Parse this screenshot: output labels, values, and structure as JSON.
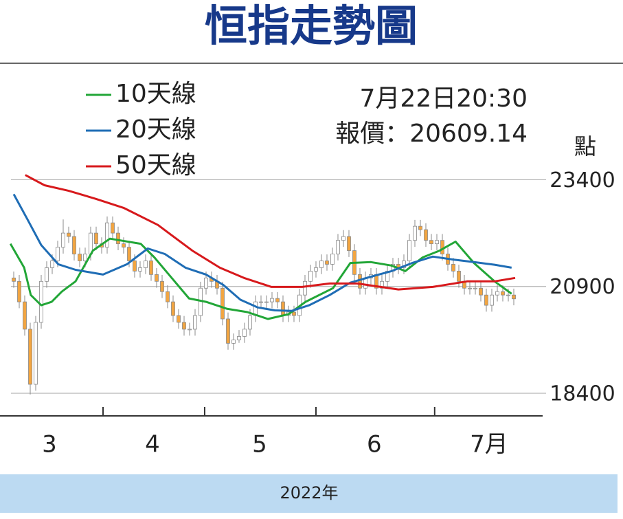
{
  "chart_data": {
    "type": "candlestick",
    "title": "恒指走勢圖",
    "annotations": [
      "7月22日20:30",
      "報價：20609.14"
    ],
    "y_label": "點",
    "x_label": "2022年",
    "ylim": [
      17870,
      23600
    ],
    "yticks": [
      18400,
      20900,
      23400
    ],
    "grid": true,
    "xlim": [
      -1,
      92
    ],
    "xticks": [
      {
        "value": 6.5,
        "label": "3"
      },
      {
        "value": 25.25,
        "label": "4"
      },
      {
        "value": 44.75,
        "label": "5"
      },
      {
        "value": 65.6,
        "label": "6"
      },
      {
        "value": 86.5,
        "label": "7月"
      }
    ],
    "month_boundaries": [
      16.25,
      34.75,
      55,
      76.6
    ],
    "up_color": "#ffffff",
    "down_color": "#f2a541",
    "candle_edge_color": "#888888",
    "candles": [
      [
        21100,
        21250,
        20870,
        21020
      ],
      [
        21020,
        21170,
        20390,
        20540
      ],
      [
        20540,
        20690,
        19750,
        19900
      ],
      [
        19900,
        20050,
        18370,
        18610
      ],
      [
        18610,
        20210,
        18460,
        20060
      ],
      [
        20060,
        21170,
        19910,
        21020
      ],
      [
        21020,
        21490,
        20870,
        21340
      ],
      [
        21340,
        21650,
        21190,
        21500
      ],
      [
        21500,
        21970,
        21350,
        21820
      ],
      [
        21820,
        22470,
        21670,
        22150
      ],
      [
        22150,
        22300,
        21920,
        22070
      ],
      [
        22070,
        22220,
        21510,
        21660
      ],
      [
        21660,
        21810,
        21350,
        21500
      ],
      [
        21500,
        21810,
        21350,
        21660
      ],
      [
        21660,
        22300,
        21510,
        22150
      ],
      [
        22150,
        22300,
        21750,
        21900
      ],
      [
        21900,
        22050,
        21670,
        21820
      ],
      [
        21820,
        22540,
        21670,
        22390
      ],
      [
        22390,
        22540,
        22000,
        22150
      ],
      [
        22150,
        22300,
        21750,
        21900
      ],
      [
        21900,
        22050,
        21670,
        21820
      ],
      [
        21820,
        21970,
        21350,
        21500
      ],
      [
        21500,
        21650,
        21110,
        21260
      ],
      [
        21260,
        21490,
        21110,
        21340
      ],
      [
        21340,
        21650,
        21190,
        21500
      ],
      [
        21500,
        21650,
        21030,
        21180
      ],
      [
        21180,
        21330,
        20870,
        21020
      ],
      [
        21020,
        21170,
        20630,
        20780
      ],
      [
        20780,
        20930,
        20390,
        20540
      ],
      [
        20540,
        20690,
        20070,
        20220
      ],
      [
        20220,
        20370,
        19910,
        20060
      ],
      [
        20060,
        20210,
        19750,
        19900
      ],
      [
        19900,
        20050,
        19750,
        19900
      ],
      [
        19900,
        20370,
        19750,
        20220
      ],
      [
        20220,
        21010,
        20070,
        20860
      ],
      [
        20860,
        21250,
        20710,
        21100
      ],
      [
        21100,
        21250,
        20870,
        21020
      ],
      [
        21020,
        21170,
        20710,
        20860
      ],
      [
        20860,
        21010,
        19990,
        20140
      ],
      [
        20140,
        20290,
        19420,
        19570
      ],
      [
        19570,
        19800,
        19420,
        19650
      ],
      [
        19650,
        19880,
        19580,
        19730
      ],
      [
        19730,
        20050,
        19580,
        19900
      ],
      [
        19900,
        20370,
        19750,
        20220
      ],
      [
        20220,
        20690,
        20070,
        20540
      ],
      [
        20540,
        20690,
        20390,
        20540
      ],
      [
        20540,
        20690,
        20390,
        20540
      ],
      [
        20540,
        20770,
        20390,
        20620
      ],
      [
        20620,
        20770,
        20390,
        20540
      ],
      [
        20540,
        20690,
        20070,
        20220
      ],
      [
        20220,
        20450,
        20070,
        20300
      ],
      [
        20300,
        20450,
        20070,
        20220
      ],
      [
        20220,
        20850,
        20070,
        20700
      ],
      [
        20700,
        21170,
        20550,
        21020
      ],
      [
        21020,
        21410,
        20870,
        21260
      ],
      [
        21260,
        21490,
        21110,
        21340
      ],
      [
        21340,
        21650,
        21190,
        21500
      ],
      [
        21500,
        21650,
        21270,
        21420
      ],
      [
        21420,
        21810,
        21270,
        21660
      ],
      [
        21660,
        22130,
        21510,
        21980
      ],
      [
        21980,
        22220,
        21830,
        22070
      ],
      [
        22070,
        22220,
        21590,
        21740
      ],
      [
        21740,
        21890,
        21030,
        21180
      ],
      [
        21180,
        21330,
        20710,
        20860
      ],
      [
        20860,
        21250,
        20710,
        21100
      ],
      [
        21100,
        21330,
        20950,
        21180
      ],
      [
        21180,
        21330,
        20710,
        20860
      ],
      [
        20860,
        21170,
        20710,
        21020
      ],
      [
        21020,
        21410,
        20870,
        21260
      ],
      [
        21260,
        21570,
        21110,
        21420
      ],
      [
        21420,
        21570,
        21190,
        21340
      ],
      [
        21340,
        21650,
        21190,
        21500
      ],
      [
        21500,
        22130,
        21350,
        21980
      ],
      [
        21980,
        22460,
        21830,
        22310
      ],
      [
        22310,
        22460,
        22080,
        22230
      ],
      [
        22230,
        22380,
        21830,
        21980
      ],
      [
        21980,
        22130,
        21750,
        21900
      ],
      [
        21900,
        22130,
        21750,
        21980
      ],
      [
        21980,
        22130,
        21510,
        21660
      ],
      [
        21660,
        21810,
        21270,
        21420
      ],
      [
        21420,
        21570,
        21110,
        21260
      ],
      [
        21260,
        21410,
        20870,
        21020
      ],
      [
        21020,
        21170,
        20710,
        20860
      ],
      [
        20860,
        21010,
        20710,
        20860
      ],
      [
        20860,
        21010,
        20710,
        20860
      ],
      [
        20860,
        21010,
        20550,
        20700
      ],
      [
        20700,
        20850,
        20310,
        20460
      ],
      [
        20460,
        20850,
        20310,
        20700
      ],
      [
        20700,
        20930,
        20550,
        20780
      ],
      [
        20780,
        20930,
        20550,
        20700
      ],
      [
        20700,
        20850,
        20550,
        20700
      ],
      [
        20700,
        20850,
        20460,
        20610
      ]
    ],
    "series": [
      {
        "name": "10天線",
        "color": "#22a637",
        "x": [
          -0.6,
          1.9,
          3.1,
          5,
          6.9,
          8.75,
          11.25,
          14.4,
          17.5,
          23.1,
          25.6,
          28.75,
          31.9,
          35,
          38.75,
          42.5,
          46.25,
          50,
          53.1,
          58.1,
          61.25,
          65,
          68.75,
          71.25,
          74.4,
          77.5,
          80.4,
          83.75,
          87.5,
          90.6
        ],
        "values": [
          21900,
          21340,
          20700,
          20460,
          20540,
          20780,
          21020,
          21740,
          22020,
          21900,
          21580,
          21100,
          20620,
          20540,
          20380,
          20300,
          20140,
          20250,
          20540,
          20860,
          21450,
          21470,
          21390,
          21260,
          21580,
          21740,
          21950,
          21450,
          21020,
          20730
        ]
      },
      {
        "name": "20天線",
        "color": "#1f6db5",
        "x": [
          0,
          2.5,
          5,
          8.1,
          11.25,
          16.25,
          20.6,
          24.4,
          27.5,
          31.25,
          35,
          38.1,
          41.25,
          44.4,
          47.5,
          50.6,
          53.75,
          57.5,
          61.25,
          65,
          68.75,
          72.5,
          76.25,
          80,
          83.75,
          87.5,
          90.6
        ],
        "values": [
          23060,
          22470,
          21870,
          21420,
          21290,
          21180,
          21420,
          21790,
          21660,
          21340,
          21180,
          20940,
          20590,
          20410,
          20340,
          20330,
          20460,
          20700,
          20990,
          21130,
          21260,
          21450,
          21600,
          21530,
          21470,
          21410,
          21340
        ]
      },
      {
        "name": "50天線",
        "color": "#d7191c",
        "x": [
          2.1,
          5.6,
          10,
          15,
          20,
          26.25,
          32.5,
          37.5,
          41.9,
          46.9,
          52.5,
          57.5,
          62.5,
          70,
          76.25,
          82.5,
          87.5,
          91.25
        ],
        "values": [
          23510,
          23270,
          23140,
          22950,
          22740,
          22340,
          21740,
          21340,
          21100,
          20890,
          20890,
          20970,
          20970,
          20830,
          20890,
          21020,
          21020,
          21100
        ]
      }
    ]
  }
}
